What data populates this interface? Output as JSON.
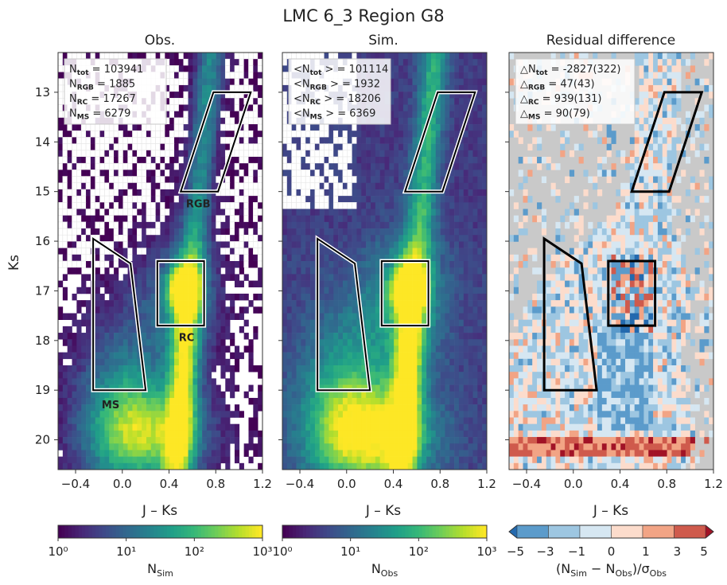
{
  "figure": {
    "title": "LMC 6_3 Region G8"
  },
  "colors": {
    "region_outline_dark": "#000000",
    "region_outline_light": "#ffffff",
    "residual_background": "#c9c9c9",
    "residual_scale": [
      "#2369ae",
      "#5b9bcb",
      "#9dc6e1",
      "#d6e7f2",
      "#fcdccc",
      "#f2a485",
      "#cf5a4c",
      "#a11326"
    ]
  },
  "chart_data": [
    {
      "type": "heatmap",
      "title": "Obs.",
      "xlabel": "J – Ks",
      "ylabel": "Ks",
      "xlim": [
        -0.55,
        1.2
      ],
      "ylim": [
        20.6,
        12.2
      ],
      "xticks": [
        "−0.4",
        "0.0",
        "0.4",
        "0.8",
        "1.2"
      ],
      "yticks": [
        "13",
        "14",
        "15",
        "16",
        "17",
        "18",
        "19",
        "20"
      ],
      "stats_box": [
        {
          "label": "N",
          "sub": "tot",
          "value": "= 103941"
        },
        {
          "label": "N",
          "sub": "RGB",
          "value": "= 1885"
        },
        {
          "label": "N",
          "sub": "RC",
          "value": "= 17267"
        },
        {
          "label": "N",
          "sub": "MS",
          "value": "= 6279"
        }
      ],
      "region_labels": [
        {
          "text": "RGB",
          "x": 0.65,
          "y": 15.25
        },
        {
          "text": "RC",
          "x": 0.55,
          "y": 17.95
        },
        {
          "text": "MS",
          "x": -0.1,
          "y": 19.3
        }
      ],
      "regions": [
        {
          "name": "RGB",
          "points": [
            [
              0.78,
              13.0
            ],
            [
              1.1,
              13.0
            ],
            [
              0.82,
              15.0
            ],
            [
              0.5,
              15.0
            ]
          ]
        },
        {
          "name": "RC",
          "points": [
            [
              0.3,
              16.4
            ],
            [
              0.7,
              16.4
            ],
            [
              0.7,
              17.7
            ],
            [
              0.3,
              17.7
            ]
          ]
        },
        {
          "name": "MS",
          "points": [
            [
              -0.25,
              15.95
            ],
            [
              0.07,
              16.45
            ],
            [
              0.2,
              19.0
            ],
            [
              -0.25,
              19.0
            ]
          ]
        }
      ],
      "colorbar": {
        "label": "N",
        "sub": "Sim",
        "ticks": [
          "10⁰",
          "10¹",
          "10²",
          "10³"
        ],
        "scale": "log",
        "range": [
          1,
          1000
        ]
      }
    },
    {
      "type": "heatmap",
      "title": "Sim.",
      "xlabel": "J – Ks",
      "xlim": [
        -0.55,
        1.2
      ],
      "ylim": [
        20.6,
        12.2
      ],
      "xticks": [
        "−0.4",
        "0.0",
        "0.4",
        "0.8",
        "1.2"
      ],
      "stats_box": [
        {
          "label": "<N",
          "sub": "tot",
          "value": "> = 101114"
        },
        {
          "label": "<N",
          "sub": "RGB",
          "value": "> = 1932"
        },
        {
          "label": "<N",
          "sub": "RC",
          "value": "> = 18206"
        },
        {
          "label": "<N",
          "sub": "MS",
          "value": "> = 6369"
        }
      ],
      "regions": [
        {
          "name": "RGB",
          "points": [
            [
              0.78,
              13.0
            ],
            [
              1.1,
              13.0
            ],
            [
              0.82,
              15.0
            ],
            [
              0.5,
              15.0
            ]
          ]
        },
        {
          "name": "RC",
          "points": [
            [
              0.3,
              16.4
            ],
            [
              0.7,
              16.4
            ],
            [
              0.7,
              17.7
            ],
            [
              0.3,
              17.7
            ]
          ]
        },
        {
          "name": "MS",
          "points": [
            [
              -0.25,
              15.95
            ],
            [
              0.07,
              16.45
            ],
            [
              0.2,
              19.0
            ],
            [
              -0.25,
              19.0
            ]
          ]
        }
      ],
      "colorbar": {
        "label": "N",
        "sub": "Obs",
        "ticks": [
          "10⁰",
          "10¹",
          "10²",
          "10³"
        ],
        "scale": "log",
        "range": [
          1,
          1000
        ]
      }
    },
    {
      "type": "heatmap",
      "title": "Residual difference",
      "xlabel": "J – Ks",
      "xlim": [
        -0.55,
        1.2
      ],
      "ylim": [
        20.6,
        12.2
      ],
      "xticks": [
        "−0.4",
        "0.0",
        "0.4",
        "0.8",
        "1.2"
      ],
      "stats_box": [
        {
          "label": "△N",
          "sub": "tot",
          "value": "= -2827(322)"
        },
        {
          "label": "△",
          "sub": "RGB",
          "value": "= 47(43)"
        },
        {
          "label": "△",
          "sub": "RC",
          "value": "= 939(131)"
        },
        {
          "label": "△",
          "sub": "MS",
          "value": "= 90(79)"
        }
      ],
      "regions": [
        {
          "name": "RGB",
          "points": [
            [
              0.78,
              13.0
            ],
            [
              1.1,
              13.0
            ],
            [
              0.82,
              15.0
            ],
            [
              0.5,
              15.0
            ]
          ]
        },
        {
          "name": "RC",
          "points": [
            [
              0.3,
              16.4
            ],
            [
              0.7,
              16.4
            ],
            [
              0.7,
              17.7
            ],
            [
              0.3,
              17.7
            ]
          ]
        },
        {
          "name": "MS",
          "points": [
            [
              -0.25,
              15.95
            ],
            [
              0.07,
              16.45
            ],
            [
              0.2,
              19.0
            ],
            [
              -0.25,
              19.0
            ]
          ]
        }
      ],
      "colorbar": {
        "label": "(N",
        "sub": "Sim",
        "label2": " − N",
        "sub2": "Obs",
        "label3": ")/σ",
        "sub3": "Obs",
        "ticks": [
          "−5",
          "−3",
          "−1",
          "0",
          "1",
          "3",
          "5"
        ],
        "scale": "diverging",
        "range": [
          -5,
          5
        ]
      }
    }
  ]
}
